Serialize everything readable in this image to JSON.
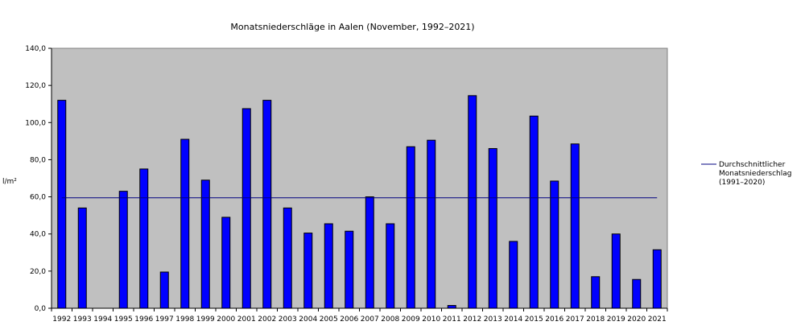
{
  "chart_data": {
    "type": "bar",
    "title": "Monatsniederschläge in Aalen (November, 1992–2021)",
    "ylabel": "l/m²",
    "xlabel": "",
    "ylim": [
      0,
      140
    ],
    "yticks": [
      "0,0",
      "20,0",
      "40,0",
      "60,0",
      "80,0",
      "100,0",
      "120,0",
      "140,0"
    ],
    "ytick_values": [
      0,
      20,
      40,
      60,
      80,
      100,
      120,
      140
    ],
    "grid": false,
    "plot_background": "#c0c0c0",
    "bar_color": "#0000ff",
    "line_color": "#000080",
    "categories": [
      "1992",
      "1993",
      "1994",
      "1995",
      "1996",
      "1997",
      "1998",
      "1999",
      "2000",
      "2001",
      "2002",
      "2003",
      "2004",
      "2005",
      "2006",
      "2007",
      "2008",
      "2009",
      "2010",
      "2011",
      "2012",
      "2013",
      "2014",
      "2015",
      "2016",
      "2017",
      "2018",
      "2019",
      "2020",
      "2021"
    ],
    "values": [
      112.0,
      54.0,
      0,
      63.0,
      75.0,
      19.5,
      91.0,
      69.0,
      49.0,
      107.5,
      112.0,
      54.0,
      40.5,
      45.5,
      41.5,
      60.0,
      45.5,
      87.0,
      90.5,
      1.5,
      114.5,
      86.0,
      36.0,
      103.5,
      68.5,
      88.5,
      17.0,
      40.0,
      15.5,
      31.5
    ],
    "reference_line": {
      "value": 59.5,
      "legend": [
        "Durchschnittlicher",
        "Monatsniederschlag",
        "(1991–2020)"
      ]
    },
    "legend_position": "right"
  }
}
